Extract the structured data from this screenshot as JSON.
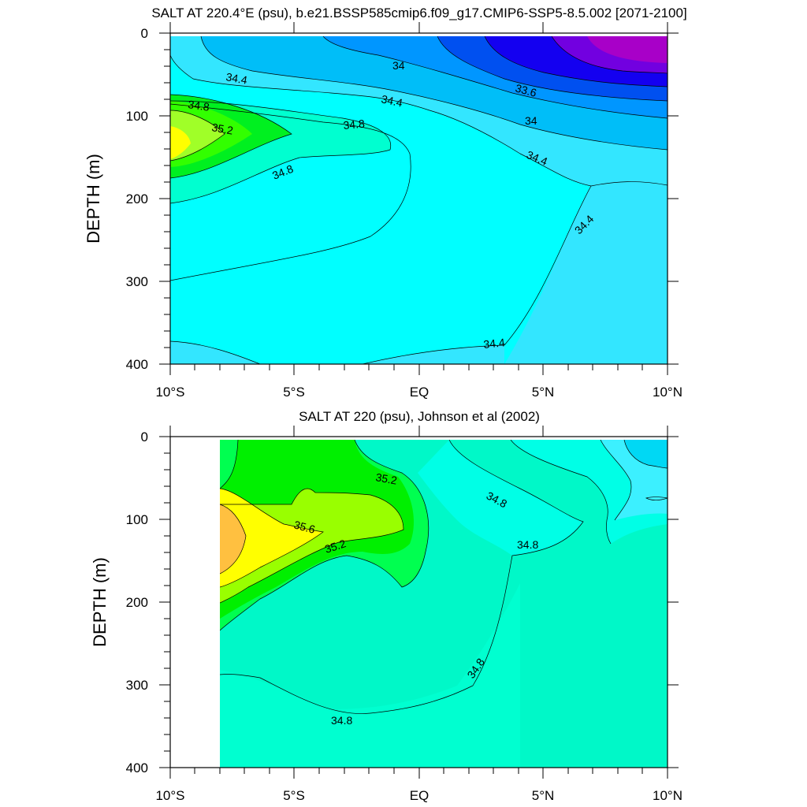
{
  "panels": [
    {
      "title": "SALT AT 220.4°E (psu), b.e21.BSSP585cmip6.f09_g17.CMIP6-SSP5-8.5.002 [2071-2100]",
      "ylabel": "DEPTH (m)",
      "xticks": [
        "10°S",
        "5°S",
        "EQ",
        "5°N",
        "10°N"
      ],
      "yticks": [
        "0",
        "100",
        "200",
        "300",
        "400"
      ],
      "contour_labels": [
        "34.4",
        "34",
        "34.4",
        "33.6",
        "34.8",
        "35.2",
        "34.8",
        "34",
        "34.8",
        "34.4",
        "34.4",
        "34.4"
      ]
    },
    {
      "title": "SALT AT 220 (psu), Johnson et al (2002)",
      "ylabel": "DEPTH (m)",
      "xticks": [
        "10°S",
        "5°S",
        "EQ",
        "5°N",
        "10°N"
      ],
      "yticks": [
        "0",
        "100",
        "200",
        "300",
        "400"
      ],
      "contour_labels": [
        "35.2",
        "34.8",
        "35.6",
        "35.2",
        "34.8",
        "34.8",
        "34.8"
      ]
    }
  ],
  "chart_data": [
    {
      "type": "heatmap",
      "title": "SALT AT 220.4°E (psu), b.e21.BSSP585cmip6.f09_g17.CMIP6-SSP5-8.5.002 [2071-2100]",
      "xlabel": "",
      "ylabel": "DEPTH (m)",
      "x_range_deg_lat": [
        -10,
        10
      ],
      "y_range_depth_m": [
        0,
        400
      ],
      "y_axis_inverted": true,
      "contour_interval_psu": 0.2,
      "contour_levels_labeled": [
        33.6,
        34,
        34.4,
        34.8,
        35.2
      ],
      "grid": false,
      "colors": {
        "lt_33.4": "#a800c8",
        "33.4_33.6": "#7200e0",
        "33.6_33.8": "#1400f0",
        "33.8_34.0": "#0050f0",
        "34.0_34.2": "#0096ff",
        "34.2_34.4": "#00bef8",
        "34.4_34.6": "#33e6ff",
        "34.6_34.8": "#00ffff",
        "34.8_35.0": "#00ffd0",
        "35.0_35.2": "#00f020",
        "35.2_35.4": "#32ff00",
        "35.4_35.6": "#a0ff28",
        "35.6_35.8": "#ffff00"
      },
      "features": [
        "fresh core < 33.4 psu near 8-10N at 0-40 m",
        "salinity maximum ~35.6 psu near 10S, 140 m",
        "34.4 contour bounds deep low-salinity water at 5-10N"
      ]
    },
    {
      "type": "heatmap",
      "title": "SALT AT 220 (psu), Johnson et al (2002)",
      "xlabel": "",
      "ylabel": "DEPTH (m)",
      "x_range_deg_lat": [
        -10,
        10
      ],
      "data_x_range_deg_lat": [
        -8,
        10
      ],
      "y_range_depth_m": [
        0,
        400
      ],
      "y_axis_inverted": true,
      "contour_interval_psu": 0.2,
      "contour_levels_labeled": [
        34.8,
        35.2,
        35.6
      ],
      "grid": false,
      "colors": {
        "34.2_34.4": "#00d8f4",
        "34.4_34.6": "#3cf0ff",
        "34.6_34.8": "#00ffe6",
        "34.8_35.0": "#00f8c8",
        "35.0_35.2": "#00ff50",
        "35.2_35.4": "#00f000",
        "35.4_35.6": "#99ff00",
        "35.6_35.8": "#ffff00",
        "35.8_36.0": "#ffc040"
      },
      "features": [
        "salinity maximum > 35.8 psu near 8S, 130 m",
        "35.2 psu salty tongue extends from 8S to the equator above 150 m",
        "fresher water < 34.6 psu at 7-10N near surface"
      ]
    }
  ]
}
